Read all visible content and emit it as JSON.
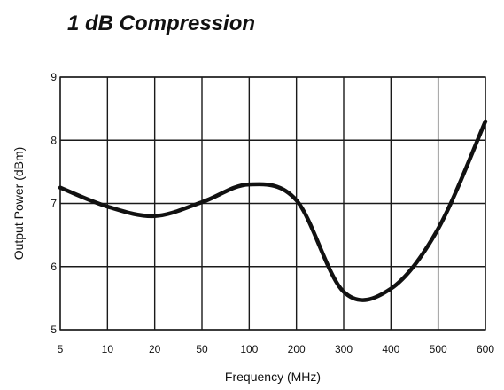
{
  "chart_data": {
    "type": "line",
    "title": "1 dB Compression",
    "xlabel": "Frequency (MHz)",
    "ylabel": "Output Power (dBm)",
    "x_tick_labels": [
      "5",
      "10",
      "20",
      "50",
      "100",
      "200",
      "300",
      "400",
      "500",
      "600"
    ],
    "y_tick_labels": [
      "5",
      "6",
      "7",
      "8",
      "9"
    ],
    "ylim": [
      5,
      9
    ],
    "grid": true,
    "series": [
      {
        "x": [
          "5",
          "10",
          "20",
          "50",
          "100",
          "200",
          "300",
          "400",
          "500",
          "600"
        ],
        "values": [
          7.25,
          6.95,
          6.8,
          7.02,
          7.3,
          7.05,
          5.6,
          5.65,
          6.6,
          8.3
        ]
      }
    ],
    "colors": {
      "line": "#111111",
      "grid": "#1a1a1a"
    }
  }
}
